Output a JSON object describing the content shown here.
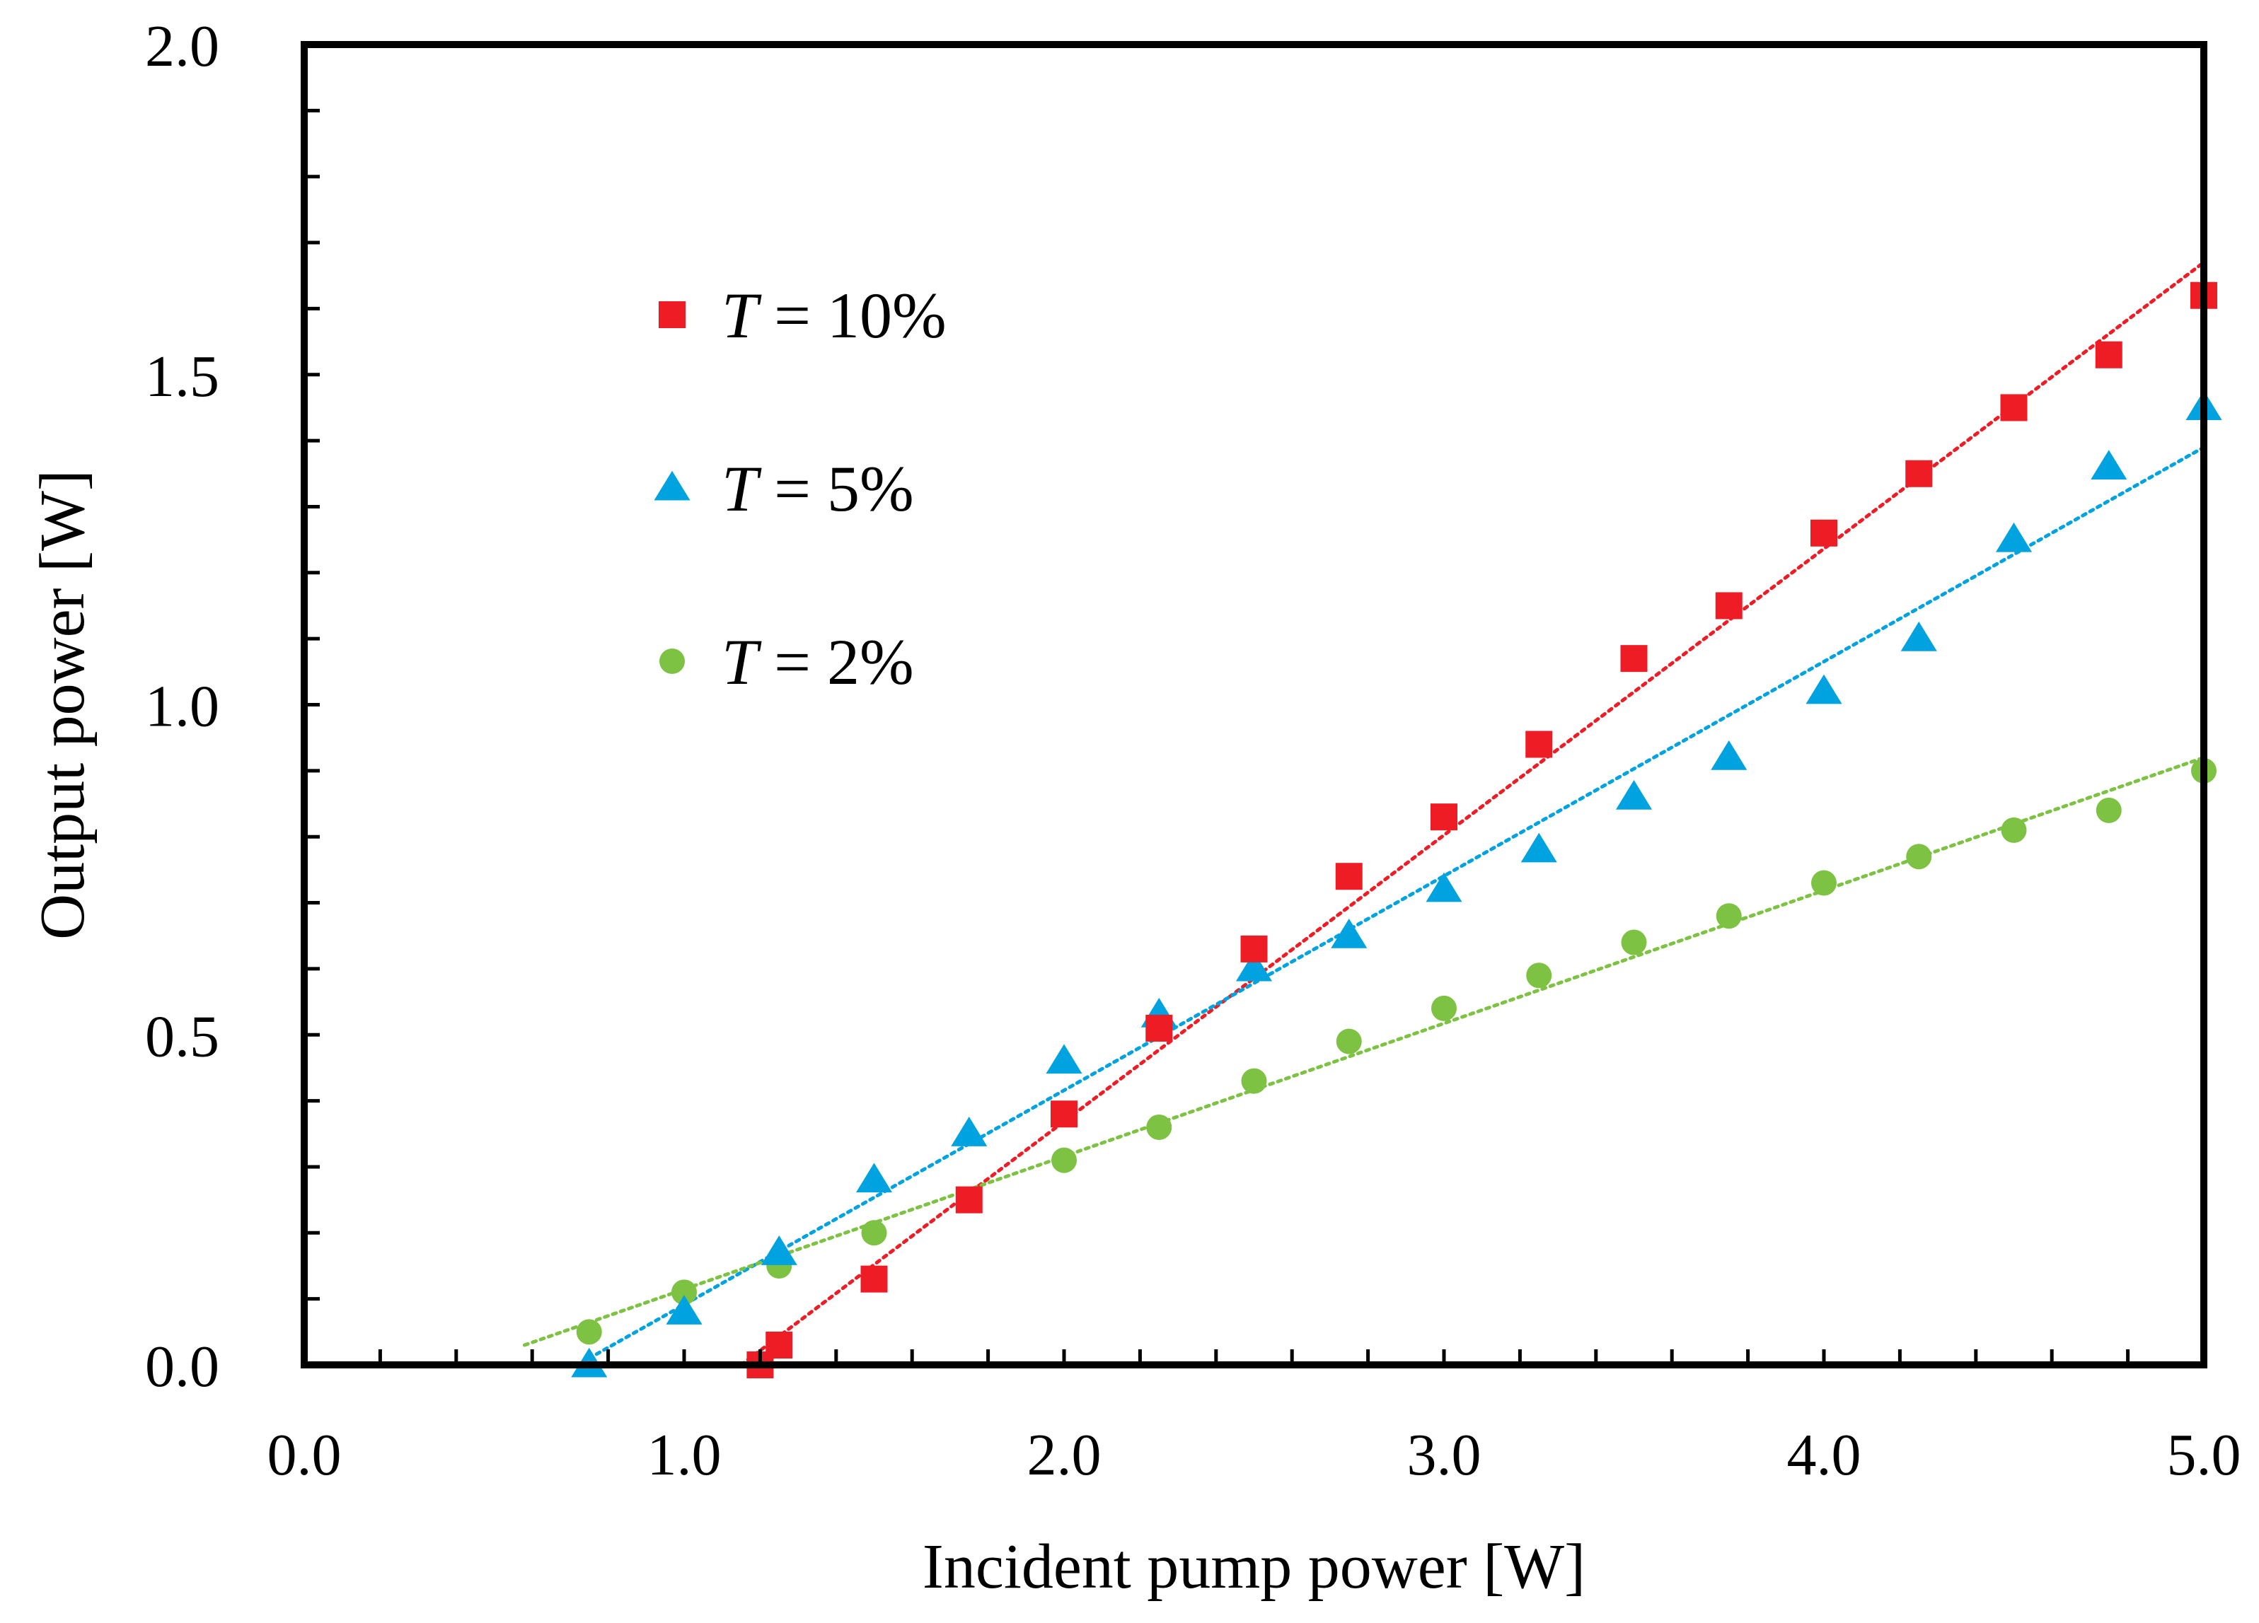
{
  "chart_data": {
    "type": "scatter",
    "title": "",
    "xlabel": "Incident pump power [W]",
    "ylabel": "Output power [W]",
    "xlim": [
      0,
      5
    ],
    "ylim": [
      0,
      2
    ],
    "x_ticks": [
      "0.0",
      "1.0",
      "2.0",
      "3.0",
      "4.0",
      "5.0"
    ],
    "y_ticks": [
      "0.0",
      "0.5",
      "1.0",
      "1.5",
      "2.0"
    ],
    "x_tick_values": [
      0,
      1,
      2,
      3,
      4,
      5
    ],
    "y_tick_values": [
      0,
      0.5,
      1.0,
      1.5,
      2.0
    ],
    "x_minor_step": 0.2,
    "y_minor_step": 0.1,
    "grid": false,
    "legend_position": "upper-left",
    "series": [
      {
        "name": "T = 10%",
        "legend_var": "T",
        "legend_rest": " = 10%",
        "marker": "square",
        "color": "#ee1c24",
        "x": [
          1.2,
          1.25,
          1.5,
          1.75,
          2.0,
          2.25,
          2.5,
          2.75,
          3.0,
          3.25,
          3.5,
          3.75,
          4.0,
          4.25,
          4.5,
          4.75,
          5.0
        ],
        "y": [
          0.0,
          0.03,
          0.13,
          0.25,
          0.38,
          0.51,
          0.63,
          0.74,
          0.83,
          0.94,
          1.07,
          1.15,
          1.26,
          1.35,
          1.45,
          1.53,
          1.62
        ],
        "fit": {
          "x": [
            1.15,
            5.0
          ],
          "y": [
            0.0,
            1.67
          ]
        }
      },
      {
        "name": "T = 5%",
        "legend_var": "T",
        "legend_rest": " = 5%",
        "marker": "triangle",
        "color": "#00a2e0",
        "x": [
          0.75,
          1.0,
          1.25,
          1.5,
          1.75,
          2.0,
          2.25,
          2.5,
          2.75,
          3.0,
          3.25,
          3.5,
          3.75,
          4.0,
          4.25,
          4.5,
          4.75,
          5.0
        ],
        "y": [
          0.0,
          0.08,
          0.17,
          0.28,
          0.35,
          0.46,
          0.53,
          0.6,
          0.65,
          0.72,
          0.78,
          0.86,
          0.92,
          1.02,
          1.1,
          1.25,
          1.36,
          1.45
        ],
        "fit": {
          "x": [
            0.75,
            5.0
          ],
          "y": [
            0.01,
            1.39
          ]
        }
      },
      {
        "name": "T = 2%",
        "legend_var": "T",
        "legend_rest": " = 2%",
        "marker": "circle",
        "color": "#7dc242",
        "x": [
          0.75,
          1.0,
          1.25,
          1.5,
          1.75,
          2.0,
          2.25,
          2.5,
          2.75,
          3.0,
          3.25,
          3.5,
          3.75,
          4.0,
          4.25,
          4.5,
          4.75,
          5.0
        ],
        "y": [
          0.05,
          0.11,
          0.15,
          0.2,
          0.25,
          0.31,
          0.36,
          0.43,
          0.49,
          0.54,
          0.59,
          0.64,
          0.68,
          0.73,
          0.77,
          0.81,
          0.84,
          0.9
        ],
        "fit": {
          "x": [
            0.58,
            5.0
          ],
          "y": [
            0.03,
            0.92
          ]
        }
      }
    ]
  }
}
